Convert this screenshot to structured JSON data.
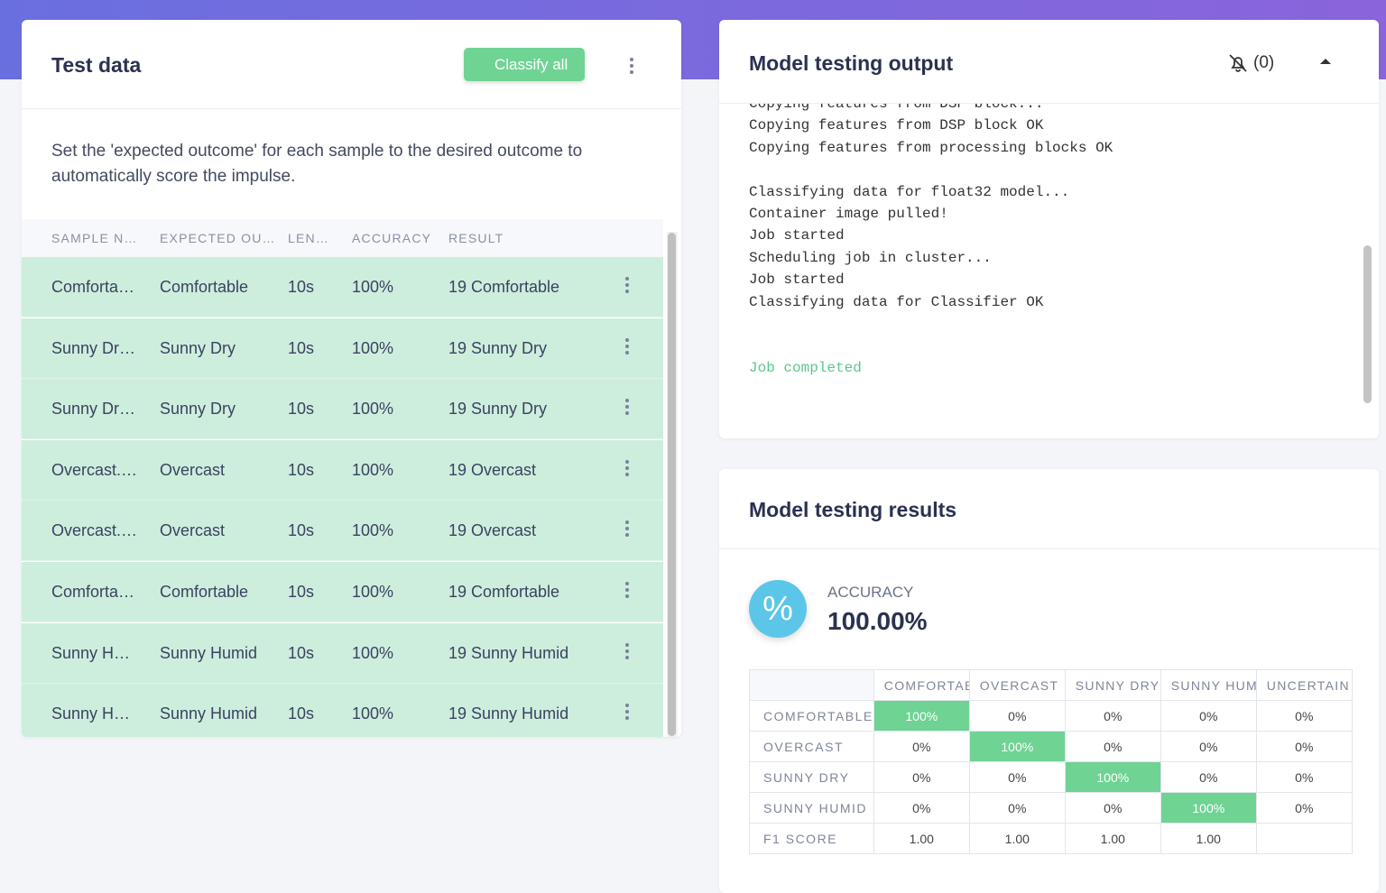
{
  "test_data": {
    "title": "Test data",
    "classify_button": "Classify all",
    "description": "Set the 'expected outcome' for each sample to the desired outcome to automatically score the impulse.",
    "columns": [
      "SAMPLE N…",
      "EXPECTED OU…",
      "LEN…",
      "ACCURACY",
      "RESULT"
    ],
    "rows": [
      [
        "Comforta…",
        "Comfortable",
        "10s",
        "100%",
        "19 Comfortable"
      ],
      [
        "Sunny Dr…",
        "Sunny Dry",
        "10s",
        "100%",
        "19 Sunny Dry"
      ],
      [
        "Sunny Dr…",
        "Sunny Dry",
        "10s",
        "100%",
        "19 Sunny Dry"
      ],
      [
        "Overcast.…",
        "Overcast",
        "10s",
        "100%",
        "19 Overcast"
      ],
      [
        "Overcast.…",
        "Overcast",
        "10s",
        "100%",
        "19 Overcast"
      ],
      [
        "Comforta…",
        "Comfortable",
        "10s",
        "100%",
        "19 Comfortable"
      ],
      [
        "Sunny H…",
        "Sunny Humid",
        "10s",
        "100%",
        "19 Sunny Humid"
      ],
      [
        "Sunny H…",
        "Sunny Humid",
        "10s",
        "100%",
        "19 Sunny Humid"
      ]
    ]
  },
  "output": {
    "title": "Model testing output",
    "notifications": "(0)",
    "log": [
      [
        "Copying features from DSP block...",
        "Copying features from DSP block OK",
        "Copying features from processing blocks OK"
      ],
      [
        "Classifying data for float32 model...",
        "Container image pulled!",
        "Job started",
        "Scheduling job in cluster...",
        "Job started",
        "Classifying data for Classifier OK"
      ]
    ],
    "completed": "Job completed"
  },
  "results": {
    "title": "Model testing results",
    "accuracy_label": "ACCURACY",
    "accuracy_value": "100.00%",
    "matrix": {
      "columns": [
        "COMFORTABLE",
        "OVERCAST",
        "SUNNY DRY",
        "SUNNY HUMID",
        "UNCERTAIN"
      ],
      "rows": [
        {
          "label": "COMFORTABLE",
          "cells": [
            "100%",
            "0%",
            "0%",
            "0%",
            "0%"
          ]
        },
        {
          "label": "OVERCAST",
          "cells": [
            "0%",
            "100%",
            "0%",
            "0%",
            "0%"
          ]
        },
        {
          "label": "SUNNY DRY",
          "cells": [
            "0%",
            "0%",
            "100%",
            "0%",
            "0%"
          ]
        },
        {
          "label": "SUNNY HUMID",
          "cells": [
            "0%",
            "0%",
            "0%",
            "100%",
            "0%"
          ]
        }
      ],
      "f1_label": "F1 SCORE",
      "f1": [
        "1.00",
        "1.00",
        "1.00",
        "1.00"
      ]
    }
  }
}
